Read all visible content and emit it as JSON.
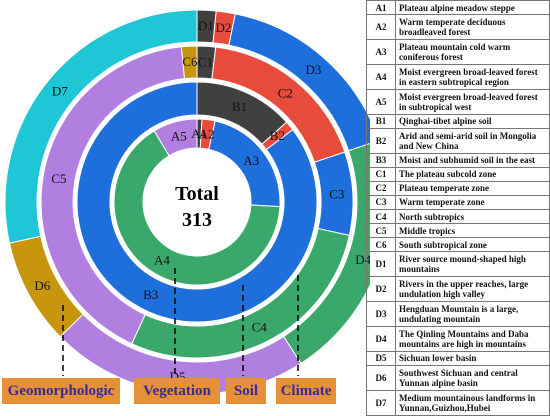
{
  "center": {
    "title": "Total",
    "value": "313"
  },
  "chart_data": [
    {
      "type": "sunburst",
      "ring": "A",
      "segments": [
        {
          "label": "A1",
          "value": 3,
          "color": "#404040"
        },
        {
          "label": "A2",
          "value": 8,
          "color": "#e64b3c"
        },
        {
          "label": "A3",
          "value": 70,
          "color": "#1e6fdc"
        },
        {
          "label": "A4",
          "value": 205,
          "color": "#3aa86b"
        },
        {
          "label": "A5",
          "value": 27,
          "color": "#b07fe0"
        }
      ]
    },
    {
      "type": "sunburst",
      "ring": "B",
      "segments": [
        {
          "label": "B1",
          "value": 42,
          "color": "#404040"
        },
        {
          "label": "B2",
          "value": 4,
          "color": "#e64b3c"
        },
        {
          "label": "B3",
          "value": 267,
          "color": "#1e6fdc"
        }
      ]
    },
    {
      "type": "sunburst",
      "ring": "C",
      "segments": [
        {
          "label": "C1",
          "value": 6,
          "color": "#404040"
        },
        {
          "label": "C2",
          "value": 56,
          "color": "#e64b3c"
        },
        {
          "label": "C3",
          "value": 27,
          "color": "#1e6fdc"
        },
        {
          "label": "C4",
          "value": 89,
          "color": "#3aa86b"
        },
        {
          "label": "C5",
          "value": 130,
          "color": "#b07fe0"
        },
        {
          "label": "C6",
          "value": 5,
          "color": "#c8960c"
        }
      ]
    },
    {
      "type": "sunburst",
      "ring": "D",
      "segments": [
        {
          "label": "D1",
          "value": 5,
          "color": "#404040"
        },
        {
          "label": "D2",
          "value": 5,
          "color": "#e64b3c"
        },
        {
          "label": "D3",
          "value": 52,
          "color": "#1e6fdc"
        },
        {
          "label": "D4",
          "value": 66,
          "color": "#3aa86b"
        },
        {
          "label": "D5",
          "value": 68,
          "color": "#b07fe0"
        },
        {
          "label": "D6",
          "value": 28,
          "color": "#c8960c"
        },
        {
          "label": "D7",
          "value": 89,
          "color": "#1ec6d6"
        }
      ]
    }
  ],
  "categories": [
    "Geomorphologic",
    "Vegetation",
    "Soil",
    "Climate"
  ],
  "legend": [
    {
      "code": "A1",
      "text": "Plateau alpine meadow steppe"
    },
    {
      "code": "A2",
      "text": "Warm temperate deciduous broadleaved forest"
    },
    {
      "code": "A3",
      "text": "Plateau mountain cold warm coniferous forest"
    },
    {
      "code": "A4",
      "text": "Moist evergreen broad-leaved forest in eastern subtropical region"
    },
    {
      "code": "A5",
      "text": "Moist evergreen broad-leaved forest in subtropical west"
    },
    {
      "code": "B1",
      "text": "Qinghai-tibet alpine soil"
    },
    {
      "code": "B2",
      "text": "Arid and semi-arid soil in Mongolia and New China"
    },
    {
      "code": "B3",
      "text": "Moist and subhumid soil in the east"
    },
    {
      "code": "C1",
      "text": "The plateau subcold zone"
    },
    {
      "code": "C2",
      "text": "Plateau temperate zone"
    },
    {
      "code": "C3",
      "text": "Warm temperate zone"
    },
    {
      "code": "C4",
      "text": "North subtropics"
    },
    {
      "code": "C5",
      "text": "Middle tropics"
    },
    {
      "code": "C6",
      "text": "South subtropical zone"
    },
    {
      "code": "D1",
      "text": "River source mound-shaped high mountains"
    },
    {
      "code": "D2",
      "text": "Rivers in the upper reaches, large undulation high valley"
    },
    {
      "code": "D3",
      "text": "Hengduan Mountain is a large, undulating mountain"
    },
    {
      "code": "D4",
      "text": "The Qinling Mountains and Daba mountains are high in mountains"
    },
    {
      "code": "D5",
      "text": "Sichuan lower basin"
    },
    {
      "code": "D6",
      "text": "Southwest Sichuan and central Yunnan alpine basin"
    },
    {
      "code": "D7",
      "text": "Medium mountainous landforms in Yunnan,Guizhou,Hubei"
    }
  ]
}
